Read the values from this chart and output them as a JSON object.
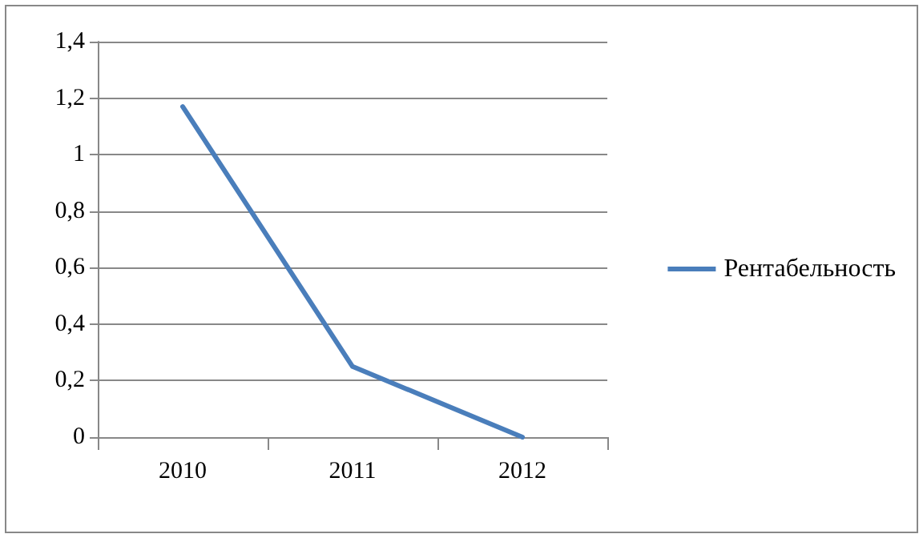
{
  "chart_data": {
    "type": "line",
    "categories": [
      "2010",
      "2011",
      "2012"
    ],
    "series": [
      {
        "name": "Рентабельность",
        "color": "#4a7ebb",
        "values": [
          1.17,
          0.25,
          0
        ]
      }
    ],
    "ylim": [
      0,
      1.4
    ],
    "yticks": [
      0,
      {
        "value": 0.2,
        "label": "0,2"
      },
      {
        "value": 0.4,
        "label": "0,4"
      },
      {
        "value": 0.6,
        "label": "0,6"
      },
      {
        "value": 0.8,
        "label": "0,8"
      },
      1,
      {
        "value": 1.2,
        "label": "1,2"
      },
      {
        "value": 1.4,
        "label": "1,4"
      }
    ],
    "grid": "y",
    "legend": "right",
    "marker": "none",
    "line_style": "solid"
  }
}
